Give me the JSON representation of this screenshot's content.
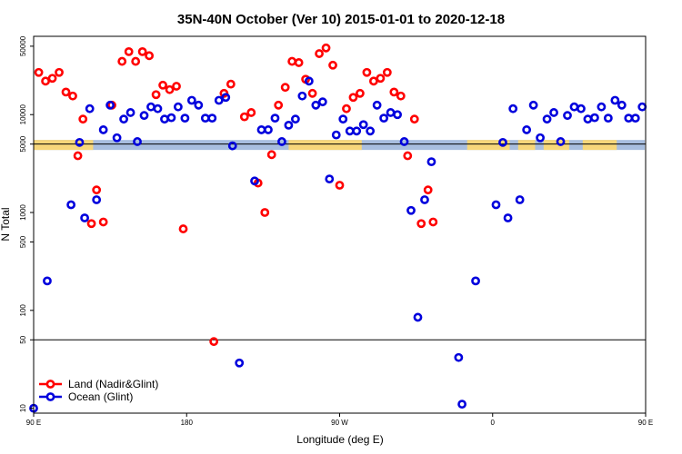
{
  "chart_data": {
    "type": "scatter",
    "title": "35N-40N October (Ver 10)   2015-01-01 to 2020-12-18",
    "xlabel": "Longitude (deg E)",
    "ylabel": "N Total",
    "xlim": [
      90,
      450
    ],
    "ylim_log10": [
      0.95,
      4.8
    ],
    "y_scale": "log",
    "x_ticks": [
      {
        "value": 90,
        "label": "90 E"
      },
      {
        "value": 180,
        "label": "180"
      },
      {
        "value": 270,
        "label": "90 W"
      },
      {
        "value": 360,
        "label": "0"
      },
      {
        "value": 450,
        "label": "90 E"
      }
    ],
    "y_ticks": [
      {
        "value": 10,
        "label": "10"
      },
      {
        "value": 50,
        "label": "50"
      },
      {
        "value": 100,
        "label": "100"
      },
      {
        "value": 500,
        "label": "500"
      },
      {
        "value": 1000,
        "label": "1000"
      },
      {
        "value": 5000,
        "label": "5000"
      },
      {
        "value": 10000,
        "label": "10000"
      },
      {
        "value": 50000,
        "label": "50000"
      }
    ],
    "reference_lines": [
      50,
      5000
    ],
    "colors": {
      "land": "#ff0000",
      "ocean": "#0000dd",
      "band_land": "#f7d77a",
      "band_ocean": "#a8bedf"
    },
    "band": {
      "y_log10": 3.69,
      "land_segments": [
        [
          90,
          125
        ],
        [
          240,
          283
        ],
        [
          345,
          370
        ],
        [
          375,
          385
        ],
        [
          390,
          405
        ],
        [
          413,
          433
        ]
      ]
    },
    "legend": [
      {
        "label": "Land (Nadir&Glint)",
        "series": "land"
      },
      {
        "label": "Ocean (Glint)",
        "series": "ocean"
      }
    ],
    "series": [
      {
        "name": "Land (Nadir&Glint)",
        "key": "land",
        "points": [
          [
            93,
            27000
          ],
          [
            97,
            22000
          ],
          [
            101,
            23500
          ],
          [
            105,
            27000
          ],
          [
            109,
            17000
          ],
          [
            113,
            15500
          ],
          [
            116,
            3800
          ],
          [
            119,
            9000
          ],
          [
            124,
            770
          ],
          [
            127,
            1700
          ],
          [
            131,
            800
          ],
          [
            136,
            12500
          ],
          [
            142,
            35000
          ],
          [
            146,
            44000
          ],
          [
            150,
            35000
          ],
          [
            154,
            44000
          ],
          [
            158,
            40000
          ],
          [
            162,
            16000
          ],
          [
            166,
            20000
          ],
          [
            170,
            18000
          ],
          [
            174,
            19500
          ],
          [
            178,
            680
          ],
          [
            196,
            48
          ],
          [
            202,
            16500
          ],
          [
            206,
            20500
          ],
          [
            214,
            9500
          ],
          [
            218,
            10500
          ],
          [
            222,
            2000
          ],
          [
            226,
            1000
          ],
          [
            230,
            3900
          ],
          [
            234,
            12500
          ],
          [
            238,
            19000
          ],
          [
            242,
            35000
          ],
          [
            246,
            34000
          ],
          [
            250,
            23000
          ],
          [
            254,
            16500
          ],
          [
            258,
            42000
          ],
          [
            262,
            48000
          ],
          [
            266,
            32000
          ],
          [
            270,
            1900
          ],
          [
            274,
            11500
          ],
          [
            278,
            15000
          ],
          [
            282,
            16500
          ],
          [
            286,
            27000
          ],
          [
            290,
            22000
          ],
          [
            294,
            23500
          ],
          [
            298,
            27000
          ],
          [
            302,
            17000
          ],
          [
            306,
            15500
          ],
          [
            310,
            3800
          ],
          [
            314,
            9000
          ],
          [
            318,
            770
          ],
          [
            322,
            1700
          ],
          [
            325,
            800
          ]
        ]
      },
      {
        "name": "Ocean (Glint)",
        "key": "ocean",
        "points": [
          [
            90,
            10
          ],
          [
            98,
            200
          ],
          [
            112,
            1200
          ],
          [
            117,
            5200
          ],
          [
            120,
            880
          ],
          [
            123,
            11500
          ],
          [
            127,
            1350
          ],
          [
            131,
            7000
          ],
          [
            135,
            12500
          ],
          [
            139,
            5800
          ],
          [
            143,
            9000
          ],
          [
            147,
            10500
          ],
          [
            151,
            5300
          ],
          [
            155,
            9800
          ],
          [
            159,
            12000
          ],
          [
            163,
            11500
          ],
          [
            167,
            9000
          ],
          [
            171,
            9300
          ],
          [
            175,
            12000
          ],
          [
            179,
            9200
          ],
          [
            183,
            14000
          ],
          [
            187,
            12500
          ],
          [
            191,
            9200
          ],
          [
            195,
            9200
          ],
          [
            199,
            14000
          ],
          [
            203,
            15000
          ],
          [
            207,
            4800
          ],
          [
            211,
            29
          ],
          [
            220,
            2100
          ],
          [
            224,
            7000
          ],
          [
            228,
            7000
          ],
          [
            232,
            9200
          ],
          [
            236,
            5300
          ],
          [
            240,
            7800
          ],
          [
            244,
            9000
          ],
          [
            248,
            15500
          ],
          [
            252,
            22000
          ],
          [
            256,
            12500
          ],
          [
            260,
            13500
          ],
          [
            264,
            2200
          ],
          [
            268,
            6200
          ],
          [
            272,
            9000
          ],
          [
            276,
            6800
          ],
          [
            280,
            6800
          ],
          [
            284,
            7900
          ],
          [
            288,
            6800
          ],
          [
            292,
            12500
          ],
          [
            296,
            9200
          ],
          [
            300,
            10500
          ],
          [
            304,
            10000
          ],
          [
            308,
            5300
          ],
          [
            312,
            1050
          ],
          [
            316,
            85
          ],
          [
            320,
            1350
          ],
          [
            324,
            3300
          ],
          [
            340,
            33
          ],
          [
            342,
            11
          ],
          [
            350,
            200
          ],
          [
            362,
            1200
          ],
          [
            366,
            5200
          ],
          [
            369,
            880
          ],
          [
            372,
            11500
          ],
          [
            376,
            1350
          ],
          [
            380,
            7000
          ],
          [
            384,
            12500
          ],
          [
            388,
            5800
          ],
          [
            392,
            9000
          ],
          [
            396,
            10500
          ],
          [
            400,
            5300
          ],
          [
            404,
            9800
          ],
          [
            408,
            12000
          ],
          [
            412,
            11500
          ],
          [
            416,
            9000
          ],
          [
            420,
            9300
          ],
          [
            424,
            12000
          ],
          [
            428,
            9200
          ],
          [
            432,
            14000
          ],
          [
            436,
            12500
          ],
          [
            440,
            9200
          ],
          [
            444,
            9200
          ],
          [
            448,
            12000
          ]
        ]
      }
    ]
  }
}
